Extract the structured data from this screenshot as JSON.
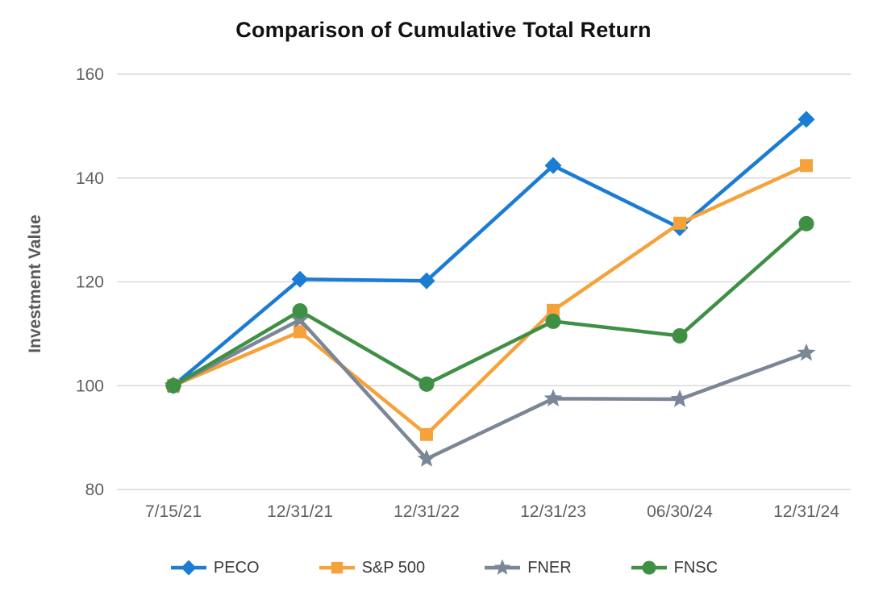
{
  "chart_data": {
    "type": "line",
    "title": "Comparison of Cumulative Total Return",
    "ylabel": "Investment Value",
    "xlabel": "",
    "categories": [
      "7/15/21",
      "12/31/21",
      "12/31/22",
      "12/31/23",
      "06/30/24",
      "12/31/24"
    ],
    "ylim": [
      80,
      160
    ],
    "yticks": [
      80,
      100,
      120,
      140,
      160
    ],
    "grid": "horizontal",
    "legend_position": "bottom",
    "colors": {
      "gridline": "#d9d9d9",
      "tick_label": "#606060",
      "title": "#111111",
      "axis_label": "#595959"
    },
    "series": [
      {
        "name": "PECO",
        "marker": "diamond",
        "color": "#1b7cd4",
        "values": [
          100,
          120.5,
          120.2,
          142.4,
          130.4,
          151.3
        ]
      },
      {
        "name": "S&P 500",
        "marker": "square",
        "color": "#f6a23b",
        "values": [
          100,
          110.4,
          90.6,
          114.5,
          131.3,
          142.4
        ]
      },
      {
        "name": "FNER",
        "marker": "star",
        "color": "#7b8696",
        "values": [
          100,
          112.7,
          85.9,
          97.5,
          97.4,
          106.3
        ]
      },
      {
        "name": "FNSC",
        "marker": "circle",
        "color": "#3f8f45",
        "values": [
          100,
          114.4,
          100.3,
          112.4,
          109.6,
          131.2
        ]
      }
    ]
  }
}
